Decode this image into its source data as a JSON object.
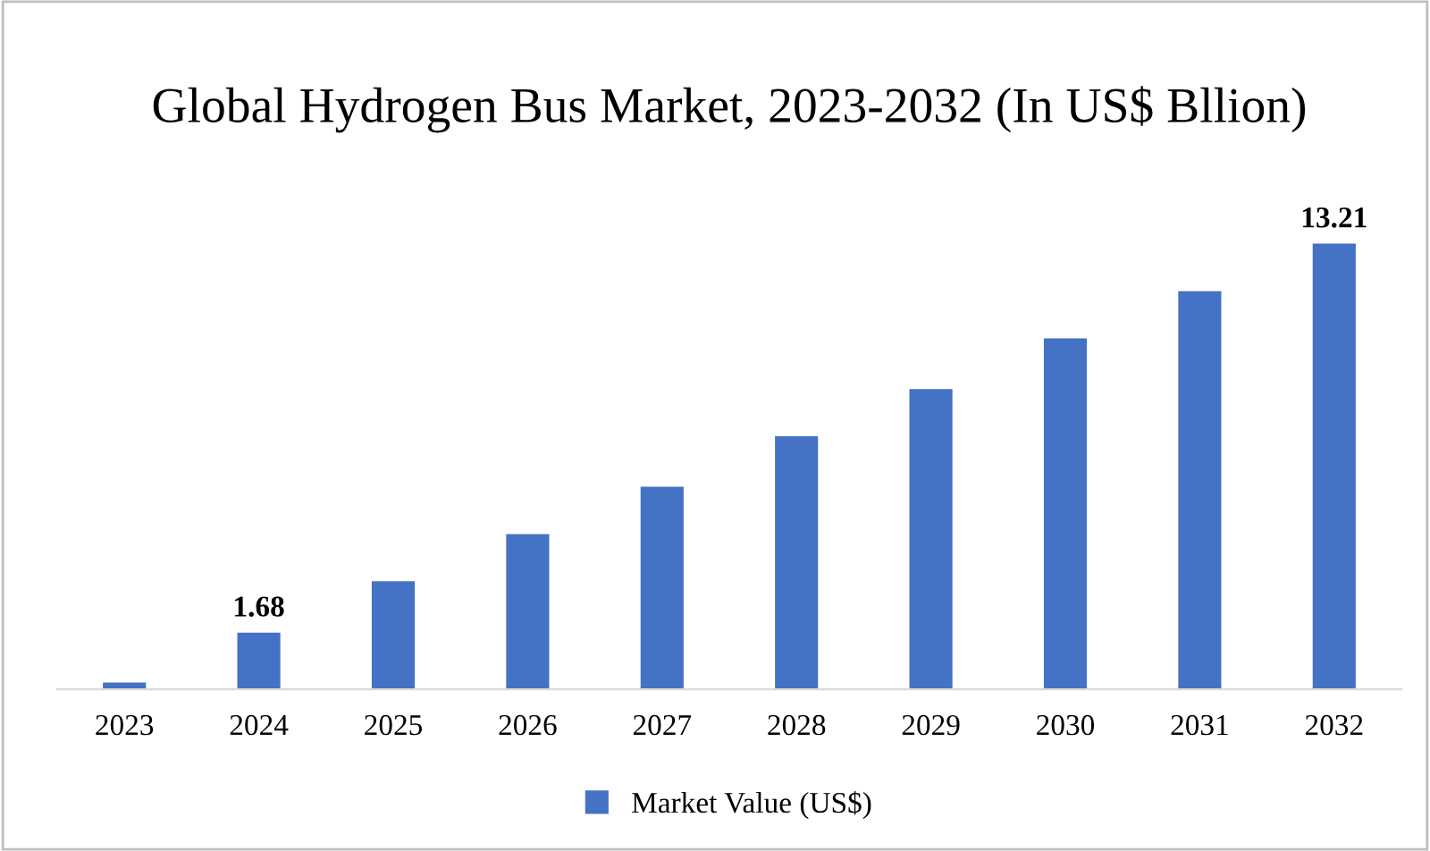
{
  "chart_data": {
    "type": "bar",
    "title": "Global Hydrogen Bus Market, 2023-2032 (In US$ Bllion)",
    "categories": [
      "2023",
      "2024",
      "2025",
      "2026",
      "2027",
      "2028",
      "2029",
      "2030",
      "2031",
      "2032"
    ],
    "series": [
      {
        "name": "Market Value (US$)",
        "color": "#4472c4",
        "values": [
          0.2,
          1.68,
          3.2,
          4.6,
          6.0,
          7.5,
          8.9,
          10.4,
          11.8,
          13.21
        ],
        "value_labels": [
          null,
          "1.68",
          null,
          null,
          null,
          null,
          null,
          null,
          null,
          "13.21"
        ]
      }
    ],
    "tick_labels": "x",
    "grid": false,
    "legend": "bottom"
  }
}
